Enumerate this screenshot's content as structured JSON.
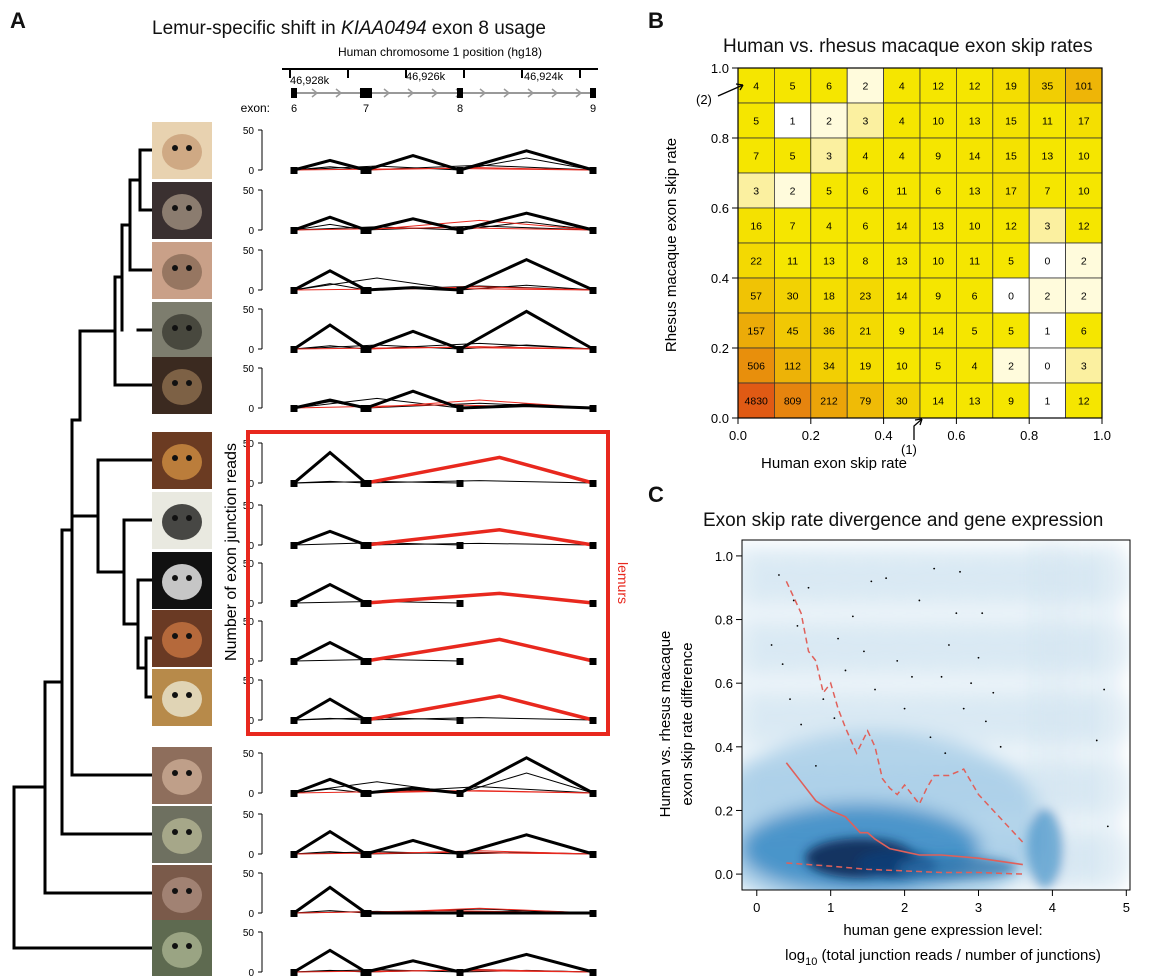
{
  "panels": {
    "a": {
      "letter": "A",
      "title_pre": "Lemur-specific shift in ",
      "title_gene": "KIAA0494",
      "title_post": " exon 8 usage"
    },
    "b": {
      "letter": "B"
    },
    "c": {
      "letter": "C"
    }
  },
  "colors": {
    "lemur": "#e8281e",
    "black": "#000000",
    "heat_low": "#fffbdc",
    "heat_mid": "#f5e600",
    "heat_high": "#e05a14",
    "density_dark": "#0a2a55",
    "density_mid": "#2f86c2",
    "density_light": "#cfe3f1"
  },
  "chart_data": [
    {
      "type": "line",
      "title": "Lemur-specific shift in KIAA0494 exon 8 usage",
      "track_label": "Human chromosome 1 position (hg18)",
      "positions": [
        "46,928k",
        "46,926k",
        "46,924k"
      ],
      "exon_label": "exon:",
      "exons": [
        "6",
        "7",
        "8",
        "9"
      ],
      "ylabel": "Number of exon junction reads",
      "yticks": [
        0,
        50
      ],
      "group_label": "lemurs",
      "species": [
        {
          "lemur": false,
          "thick": [
            12,
            18,
            24
          ],
          "thin": [
            5,
            6,
            4,
            15
          ],
          "red": [
            3,
            2
          ]
        },
        {
          "lemur": false,
          "thick": [
            16,
            14,
            21
          ],
          "thin": [
            4,
            5,
            7,
            10
          ],
          "red": [
            12,
            3
          ]
        },
        {
          "lemur": false,
          "thick": [
            24,
            3,
            38
          ],
          "thin": [
            15,
            5,
            8,
            6
          ],
          "red": [
            4,
            2
          ]
        },
        {
          "lemur": false,
          "thick": [
            30,
            22,
            47
          ],
          "thin": [
            5,
            7,
            4,
            5
          ],
          "red": [
            3,
            2
          ]
        },
        {
          "lemur": false,
          "thick": [
            10,
            21,
            3
          ],
          "thin": [
            12,
            6,
            8,
            5
          ],
          "red": [
            10,
            4
          ]
        },
        {
          "lemur": true,
          "thick": [
            38,
            0,
            0
          ],
          "thin": [
            2,
            3,
            2,
            0
          ],
          "red": [
            32,
            0
          ]
        },
        {
          "lemur": true,
          "thick": [
            17,
            0,
            0
          ],
          "thin": [
            3,
            2,
            0,
            0
          ],
          "red": [
            19,
            0
          ]
        },
        {
          "lemur": true,
          "thick": [
            23,
            0,
            0
          ],
          "thin": [
            2,
            0,
            0,
            0
          ],
          "red": [
            12,
            0
          ]
        },
        {
          "lemur": true,
          "thick": [
            23,
            0,
            0
          ],
          "thin": [
            2,
            0,
            0,
            0
          ],
          "red": [
            27,
            0
          ]
        },
        {
          "lemur": true,
          "thick": [
            26,
            0,
            0
          ],
          "thin": [
            3,
            3,
            2,
            0
          ],
          "red": [
            30,
            0
          ]
        },
        {
          "lemur": false,
          "thick": [
            17,
            6,
            44
          ],
          "thin": [
            14,
            8,
            5,
            25
          ],
          "red": [
            3,
            3
          ]
        },
        {
          "lemur": false,
          "thick": [
            28,
            17,
            24
          ],
          "thin": [
            3,
            2,
            3,
            2
          ],
          "red": [
            4,
            2
          ]
        },
        {
          "lemur": false,
          "thick": [
            32,
            0,
            0
          ],
          "thin": [
            2,
            5,
            3,
            3
          ],
          "red": [
            6,
            3
          ]
        },
        {
          "lemur": false,
          "thick": [
            27,
            14,
            22
          ],
          "thin": [
            3,
            3,
            2,
            2
          ],
          "red": [
            3,
            2
          ]
        }
      ]
    },
    {
      "type": "heatmap",
      "title": "Human vs. rhesus macaque exon skip rates",
      "xlabel": "Human exon skip rate",
      "ylabel": "Rhesus macaque exon skip rate",
      "xlim": [
        0,
        1
      ],
      "ylim": [
        0,
        1
      ],
      "xticks": [
        "0.0",
        "0.2",
        "0.4",
        "0.6",
        "0.8",
        "1.0"
      ],
      "yticks": [
        "0.0",
        "0.2",
        "0.4",
        "0.6",
        "0.8",
        "1.0"
      ],
      "rows_top_to_bottom": [
        [
          4,
          5,
          6,
          2,
          4,
          12,
          12,
          19,
          35,
          101
        ],
        [
          5,
          1,
          2,
          3,
          4,
          10,
          13,
          15,
          11,
          17
        ],
        [
          7,
          5,
          3,
          4,
          4,
          9,
          14,
          15,
          13,
          10
        ],
        [
          3,
          2,
          5,
          6,
          11,
          6,
          13,
          17,
          7,
          10
        ],
        [
          16,
          7,
          4,
          6,
          14,
          13,
          10,
          12,
          3,
          12
        ],
        [
          22,
          11,
          13,
          8,
          13,
          10,
          11,
          5,
          0,
          2
        ],
        [
          57,
          30,
          18,
          23,
          14,
          9,
          6,
          0,
          2,
          2
        ],
        [
          157,
          45,
          36,
          21,
          9,
          14,
          5,
          5,
          1,
          6
        ],
        [
          506,
          112,
          34,
          19,
          10,
          5,
          4,
          2,
          0,
          3
        ],
        [
          4830,
          809,
          212,
          79,
          30,
          14,
          13,
          9,
          1,
          12
        ]
      ],
      "annotations": [
        "(1)",
        "(2)"
      ]
    },
    {
      "type": "scatter",
      "title": "Exon skip rate divergence and gene expression",
      "ylabel_line1": "Human vs. rhesus macaque",
      "ylabel_line2": "exon skip rate difference",
      "xlabel_line1": "human gene expression level:",
      "xlabel_line2_pre": "log",
      "xlabel_line2_sub": "10",
      "xlabel_line2_post": " (total junction reads / number of junctions)",
      "xlim": [
        -0.2,
        5.05
      ],
      "ylim": [
        -0.05,
        1.05
      ],
      "xticks": [
        0,
        1,
        2,
        3,
        4,
        5
      ],
      "yticks": [
        "0.0",
        "0.2",
        "0.4",
        "0.6",
        "0.8",
        "1.0"
      ],
      "median": {
        "x": [
          0.4,
          0.6,
          0.8,
          1.0,
          1.2,
          1.4,
          1.5,
          1.6,
          1.8,
          2.0,
          2.2,
          2.5,
          3.0,
          3.6
        ],
        "y": [
          0.35,
          0.29,
          0.23,
          0.2,
          0.18,
          0.13,
          0.13,
          0.11,
          0.08,
          0.07,
          0.06,
          0.06,
          0.05,
          0.03
        ]
      },
      "upper": {
        "x": [
          0.4,
          0.6,
          0.7,
          0.8,
          0.9,
          1.0,
          1.1,
          1.2,
          1.35,
          1.5,
          1.6,
          1.7,
          1.8,
          1.9,
          2.0,
          2.1,
          2.2,
          2.3,
          2.4,
          2.6,
          2.8,
          3.0,
          3.2,
          3.4,
          3.6
        ],
        "y": [
          0.92,
          0.82,
          0.7,
          0.67,
          0.57,
          0.6,
          0.52,
          0.46,
          0.38,
          0.45,
          0.4,
          0.3,
          0.27,
          0.25,
          0.28,
          0.25,
          0.22,
          0.27,
          0.31,
          0.31,
          0.33,
          0.25,
          0.2,
          0.15,
          0.1
        ]
      },
      "lower": {
        "x": [
          0.4,
          1.0,
          1.5,
          2.0,
          2.5,
          3.0,
          3.6
        ],
        "y": [
          0.035,
          0.025,
          0.015,
          0.01,
          0.005,
          0.005,
          0.0
        ]
      },
      "outliers": [
        [
          0.3,
          0.94
        ],
        [
          0.5,
          0.86
        ],
        [
          0.55,
          0.78
        ],
        [
          0.35,
          0.66
        ],
        [
          0.45,
          0.55
        ],
        [
          0.6,
          0.47
        ],
        [
          0.7,
          0.9
        ],
        [
          1.1,
          0.74
        ],
        [
          1.3,
          0.81
        ],
        [
          1.45,
          0.7
        ],
        [
          1.2,
          0.64
        ],
        [
          1.6,
          0.58
        ],
        [
          1.9,
          0.67
        ],
        [
          2.0,
          0.52
        ],
        [
          2.2,
          0.86
        ],
        [
          2.4,
          0.96
        ],
        [
          2.5,
          0.62
        ],
        [
          2.6,
          0.72
        ],
        [
          2.8,
          0.52
        ],
        [
          2.9,
          0.6
        ],
        [
          3.0,
          0.68
        ],
        [
          3.1,
          0.48
        ],
        [
          3.2,
          0.57
        ],
        [
          2.35,
          0.43
        ],
        [
          2.55,
          0.38
        ],
        [
          2.7,
          0.82
        ],
        [
          1.75,
          0.93
        ],
        [
          0.9,
          0.55
        ],
        [
          1.05,
          0.49
        ],
        [
          3.3,
          0.4
        ],
        [
          4.75,
          0.15
        ],
        [
          4.6,
          0.42
        ],
        [
          4.7,
          0.58
        ],
        [
          0.2,
          0.72
        ],
        [
          0.8,
          0.34
        ],
        [
          2.1,
          0.62
        ],
        [
          1.55,
          0.92
        ],
        [
          2.75,
          0.95
        ],
        [
          3.05,
          0.82
        ]
      ]
    }
  ]
}
